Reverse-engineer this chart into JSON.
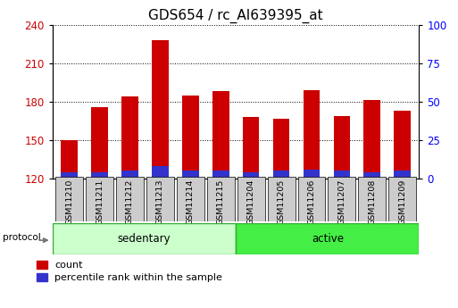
{
  "title": "GDS654 / rc_AI639395_at",
  "samples": [
    "GSM11210",
    "GSM11211",
    "GSM11212",
    "GSM11213",
    "GSM11214",
    "GSM11215",
    "GSM11204",
    "GSM11205",
    "GSM11206",
    "GSM11207",
    "GSM11208",
    "GSM11209"
  ],
  "groups": [
    "sedentary",
    "sedentary",
    "sedentary",
    "sedentary",
    "sedentary",
    "sedentary",
    "active",
    "active",
    "active",
    "active",
    "active",
    "active"
  ],
  "count_values": [
    150,
    176,
    184,
    228,
    185,
    188,
    168,
    167,
    189,
    169,
    181,
    173
  ],
  "percentile_values": [
    4.8,
    4.8,
    6.0,
    9.6,
    6.0,
    6.0,
    4.8,
    6.0,
    7.2,
    6.0,
    4.8,
    6.0
  ],
  "bar_bottom": 120,
  "bar_color_red": "#cc0000",
  "bar_color_blue": "#3333cc",
  "ylim_left": [
    120,
    240
  ],
  "ylim_right": [
    0,
    100
  ],
  "yticks_left": [
    120,
    150,
    180,
    210,
    240
  ],
  "yticks_right": [
    0,
    25,
    50,
    75,
    100
  ],
  "sedentary_color": "#ccffcc",
  "active_color": "#44ee44",
  "group_edge_color": "#33aa33",
  "xtick_bg": "#cccccc",
  "legend_count": "count",
  "legend_percentile": "percentile rank within the sample",
  "title_fontsize": 11,
  "tick_fontsize": 8.5,
  "bar_width": 0.55
}
